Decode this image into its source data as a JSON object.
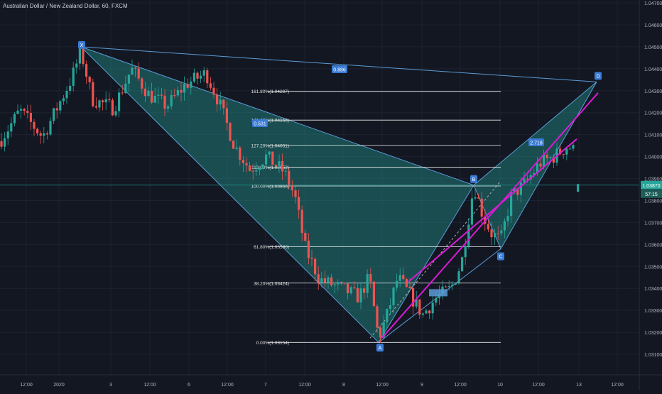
{
  "header": {
    "symbol_title": "Australian Dollar / New Zealand Dollar, 60, FXCM"
  },
  "colors": {
    "background": "#131722",
    "grid": "#1e2230",
    "text": "#b2b5be",
    "up": "#26a69a",
    "down": "#ef5350",
    "pattern_fill": "#26a69a",
    "pattern_line": "#5b9bd5",
    "trend_line": "#d81bd4",
    "fib_line": "#ffffff",
    "label_bg": "#3a7bd5"
  },
  "price_axis": {
    "ticks": [
      "1.04700",
      "1.04600",
      "1.04500",
      "1.04400",
      "1.04300",
      "1.04200",
      "1.04100",
      "1.04000",
      "1.03900",
      "1.03800",
      "1.03700",
      "1.03600",
      "1.03500",
      "1.03400",
      "1.03300",
      "1.03200",
      "1.03100"
    ],
    "current_price": "1.03870",
    "countdown": "57:15"
  },
  "time_axis": {
    "ticks": [
      "12:00",
      "2020",
      "3",
      "12:00",
      "6",
      "12:00",
      "7",
      "12:00",
      "8",
      "12:00",
      "9",
      "12:00",
      "10",
      "12:00",
      "13",
      "12:00"
    ]
  },
  "chart_data": {
    "type": "candlestick",
    "symbol": "AUDNZD",
    "interval": "60",
    "ylim": [
      1.031,
      1.047
    ],
    "pattern_points": [
      {
        "label": "X",
        "price": 1.045
      },
      {
        "label": "A",
        "price": 1.03154
      },
      {
        "label": "B",
        "price": 1.0387
      },
      {
        "label": "C",
        "price": 1.0358
      },
      {
        "label": "D",
        "price": 1.0434
      }
    ],
    "ratios": [
      "0.886",
      "0.531",
      "2.718"
    ],
    "fib_levels": [
      {
        "label": "161.80%(1.04297)",
        "price": 1.04297
      },
      {
        "label": "141.40%(1.04166)",
        "price": 1.04166
      },
      {
        "label": "127.20%(1.04051)",
        "price": 1.04051
      },
      {
        "label": "113.00%(1.03952)",
        "price": 1.03952
      },
      {
        "label": "100.00%(1.03866)",
        "price": 1.03866
      },
      {
        "label": "61.80%(1.03590)",
        "price": 1.0359
      },
      {
        "label": "38.20%(1.03424)",
        "price": 1.03424
      },
      {
        "label": "0.00%(1.03154)",
        "price": 1.03154
      }
    ],
    "trend_lines": [
      "support",
      "resistance"
    ],
    "last_price": 1.0387
  }
}
